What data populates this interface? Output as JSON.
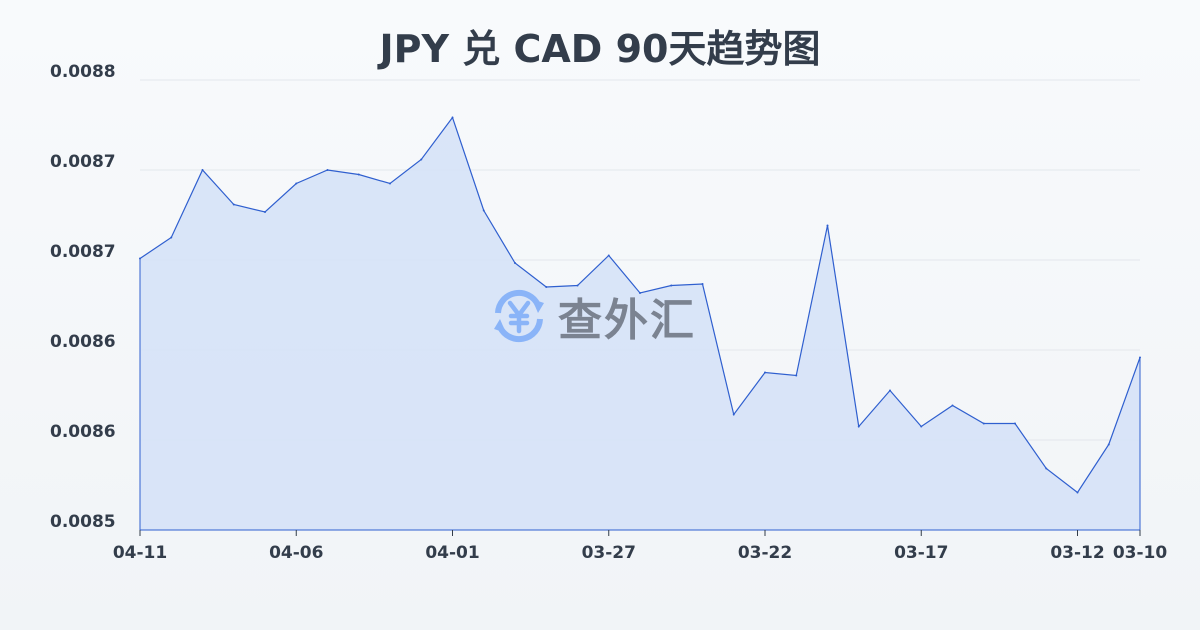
{
  "chart_data": {
    "type": "area",
    "title": "JPY 兑 CAD 90天趋势图",
    "xlabel": "",
    "ylabel": "",
    "x": [
      "04-11",
      "04-10",
      "04-09",
      "04-08",
      "04-07",
      "04-06",
      "04-05",
      "04-04",
      "04-03",
      "04-02",
      "04-01",
      "03-31",
      "03-30",
      "03-29",
      "03-28",
      "03-27",
      "03-26",
      "03-25",
      "03-24",
      "03-23",
      "03-22",
      "03-21",
      "03-20",
      "03-19",
      "03-18",
      "03-17",
      "03-16",
      "03-15",
      "03-14",
      "03-13",
      "03-12",
      "03-11",
      "03-10"
    ],
    "values": [
      0.008681,
      0.008695,
      0.00874,
      0.008717,
      0.008712,
      0.008731,
      0.00874,
      0.008737,
      0.008731,
      0.008747,
      0.008775,
      0.008713,
      0.008678,
      0.008662,
      0.008663,
      0.008683,
      0.008658,
      0.008663,
      0.008664,
      0.008577,
      0.008605,
      0.008603,
      0.008703,
      0.008569,
      0.008593,
      0.008569,
      0.008583,
      0.008571,
      0.008571,
      0.008541,
      0.008525,
      0.008557,
      0.008615
    ],
    "x_tick_labels": [
      "04-11",
      "04-06",
      "04-01",
      "03-27",
      "03-22",
      "03-17",
      "03-12",
      "03-10"
    ],
    "y_ticks": [
      0.0085,
      0.00856,
      0.00862,
      0.00868,
      0.00874,
      0.0088
    ],
    "y_tick_labels": [
      "0.0085",
      "0.0086",
      "0.0086",
      "0.0087",
      "0.0087",
      "0.0088"
    ],
    "ylim": [
      0.0085,
      0.0088
    ],
    "grid": true,
    "line_color": "#2f5fcf",
    "fill_color": "#d6e2f7"
  },
  "watermark": {
    "text": "查外汇",
    "icon": "yen-exchange-icon",
    "icon_color": "#8ab4f8"
  }
}
